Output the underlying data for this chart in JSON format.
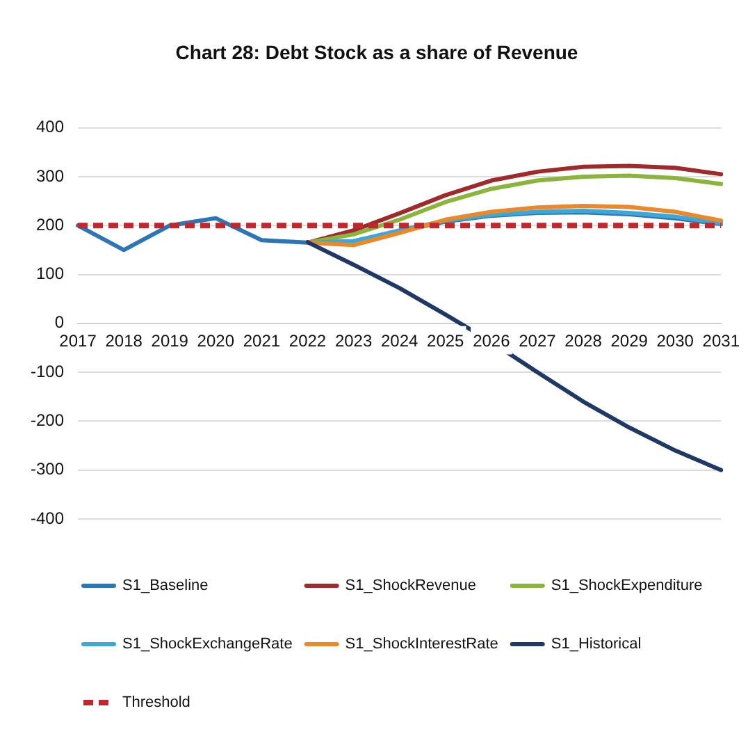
{
  "chart_data": {
    "type": "line",
    "title": "Chart 28: Debt Stock as a share of Revenue",
    "categories": [
      "2017",
      "2018",
      "2019",
      "2020",
      "2021",
      "2022",
      "2023",
      "2024",
      "2025",
      "2026",
      "2027",
      "2028",
      "2029",
      "2030",
      "2031"
    ],
    "series": [
      {
        "name": "S1_Baseline",
        "color": "#2e75b6",
        "values": [
          200,
          150,
          200,
          215,
          170,
          165,
          168,
          188,
          208,
          220,
          226,
          227,
          223,
          215,
          203
        ]
      },
      {
        "name": "S1_ShockRevenue",
        "color": "#9e2a2b",
        "values": [
          null,
          null,
          null,
          null,
          null,
          165,
          190,
          225,
          262,
          292,
          310,
          320,
          322,
          318,
          305
        ]
      },
      {
        "name": "S1_ShockExpenditure",
        "color": "#8ab43c",
        "values": [
          null,
          null,
          null,
          null,
          null,
          165,
          182,
          212,
          248,
          275,
          292,
          300,
          302,
          297,
          285
        ]
      },
      {
        "name": "S1_ShockExchangeRate",
        "color": "#3ba8d8",
        "values": [
          null,
          null,
          null,
          null,
          null,
          165,
          168,
          190,
          210,
          222,
          228,
          230,
          226,
          218,
          205
        ]
      },
      {
        "name": "S1_ShockInterestRate",
        "color": "#e8892b",
        "values": [
          null,
          null,
          null,
          null,
          null,
          165,
          160,
          185,
          212,
          228,
          237,
          240,
          238,
          228,
          210
        ]
      },
      {
        "name": "S1_Historical",
        "color": "#1f3864",
        "values": [
          null,
          null,
          null,
          null,
          null,
          166,
          120,
          72,
          18,
          -38,
          -100,
          -160,
          -213,
          -260,
          -300
        ]
      },
      {
        "name": "Threshold",
        "color": "#c0282d",
        "line_style": "dashed",
        "values": [
          200,
          200,
          200,
          200,
          200,
          200,
          200,
          200,
          200,
          200,
          200,
          200,
          200,
          200,
          200
        ]
      }
    ],
    "ylim": [
      -400,
      400
    ],
    "yticks": [
      -400,
      -300,
      -200,
      -100,
      0,
      100,
      200,
      300,
      400
    ],
    "grid": "y",
    "legend": "bottom",
    "marker": "none"
  }
}
